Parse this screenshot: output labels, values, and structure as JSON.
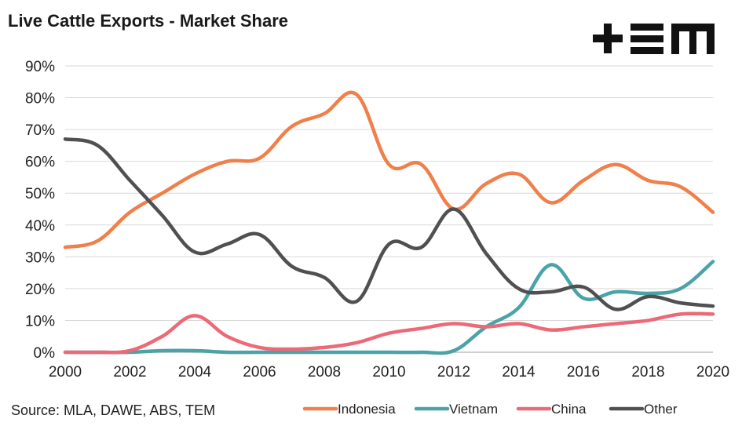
{
  "header": {
    "title": "Live Cattle Exports - Market Share",
    "logo": "TEM"
  },
  "footer": {
    "source": "Source: MLA, DAWE, ABS, TEM"
  },
  "chart_data": {
    "type": "line",
    "title": "Live Cattle Exports - Market Share",
    "xlabel": "",
    "ylabel": "",
    "x": [
      2000,
      2001,
      2002,
      2003,
      2004,
      2005,
      2006,
      2007,
      2008,
      2009,
      2010,
      2011,
      2012,
      2013,
      2014,
      2015,
      2016,
      2017,
      2018,
      2019,
      2020
    ],
    "xticks": [
      "2000",
      "2002",
      "2004",
      "2006",
      "2008",
      "2010",
      "2012",
      "2014",
      "2016",
      "2018",
      "2020"
    ],
    "yticks": [
      "0%",
      "10%",
      "20%",
      "30%",
      "40%",
      "50%",
      "60%",
      "70%",
      "80%",
      "90%"
    ],
    "ylim": [
      0,
      90
    ],
    "xlim": [
      2000,
      2020
    ],
    "grid": "horizontal",
    "legend": "bottom",
    "series": [
      {
        "name": "Indonesia",
        "color": "#F07F4A",
        "values": [
          33,
          35,
          44,
          50,
          56,
          60,
          61,
          71,
          75,
          81,
          59,
          59,
          45,
          53,
          56,
          47,
          54,
          59,
          54,
          52,
          44
        ]
      },
      {
        "name": "Vietnam",
        "color": "#4BA3A8",
        "values": [
          0,
          0,
          0,
          0.5,
          0.5,
          0,
          0,
          0,
          0,
          0,
          0,
          0,
          0.5,
          8,
          14,
          27.5,
          17,
          19,
          18.5,
          20,
          28.5
        ]
      },
      {
        "name": "China",
        "color": "#EC6A78",
        "values": [
          0,
          0,
          0.5,
          5,
          11.5,
          5,
          1.5,
          1,
          1.5,
          3,
          6,
          7.5,
          9,
          8,
          9,
          7,
          8,
          9,
          10,
          12,
          12
        ]
      },
      {
        "name": "Other",
        "color": "#505050",
        "values": [
          67,
          65,
          54,
          43,
          31.5,
          34,
          37,
          27,
          23.5,
          16,
          34,
          33,
          45,
          31,
          20,
          19,
          20.5,
          13.5,
          17.5,
          15.5,
          14.5
        ]
      }
    ]
  }
}
